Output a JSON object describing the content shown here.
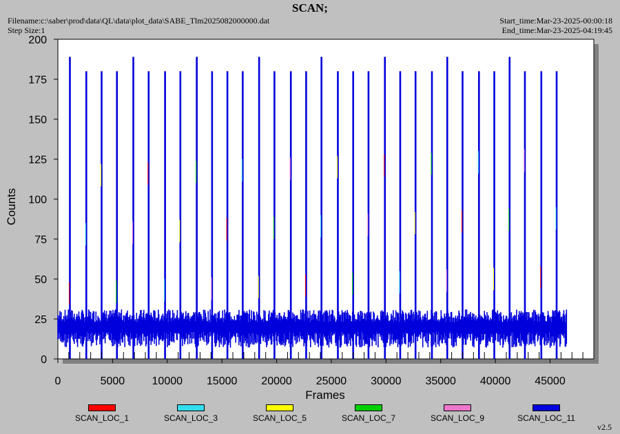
{
  "header": {
    "title": "SCAN;",
    "filename": "Filename:c:\\saber\\prod\\data\\QL\\data\\plot_data\\SABE_Tlm2025082000000.dat",
    "step_size": "Step Size:1",
    "start_time": "Start_time:Mar-23-2025-00:00:18",
    "end_time": "End_time:Mar-23-2025-04:19:45"
  },
  "version": "v2.5",
  "chart_data": {
    "type": "line",
    "title": "SCAN;",
    "xlabel": "Frames",
    "ylabel": "Counts",
    "xlim": [
      0,
      49000
    ],
    "ylim": [
      0,
      200
    ],
    "xticks": [
      0,
      5000,
      10000,
      15000,
      20000,
      25000,
      30000,
      35000,
      40000,
      45000
    ],
    "yticks": [
      0,
      25,
      50,
      75,
      100,
      125,
      150,
      175,
      200
    ],
    "x_minor_step": 1000,
    "grid": false,
    "legend_position": "bottom",
    "data_x_range": [
      0,
      46500
    ],
    "baseline": {
      "min": 10,
      "max": 30,
      "typical": 20
    },
    "spike_frames": [
      1100,
      2600,
      4000,
      5400,
      6900,
      8300,
      9800,
      11200,
      12700,
      14100,
      15500,
      16900,
      18400,
      19800,
      21300,
      22700,
      24100,
      25600,
      27000,
      28400,
      29900,
      31300,
      32700,
      34200,
      35600,
      37000,
      38500,
      39900,
      41300,
      42700,
      44200,
      45600
    ],
    "spike_values": [
      189,
      180,
      180,
      180,
      189,
      180,
      180,
      180,
      189,
      180,
      180,
      180,
      189,
      180,
      180,
      180,
      189,
      180,
      180,
      180,
      189,
      180,
      180,
      180,
      189,
      180,
      180,
      180,
      189,
      180,
      180,
      180
    ],
    "series": [
      {
        "name": "SCAN_LOC_1",
        "color": "#ff0000"
      },
      {
        "name": "SCAN_LOC_3",
        "color": "#33dded"
      },
      {
        "name": "SCAN_LOC_5",
        "color": "#ffff00"
      },
      {
        "name": "SCAN_LOC_7",
        "color": "#00d000"
      },
      {
        "name": "SCAN_LOC_9",
        "color": "#ee77cc"
      },
      {
        "name": "SCAN_LOC_11",
        "color": "#0000dd"
      }
    ]
  }
}
